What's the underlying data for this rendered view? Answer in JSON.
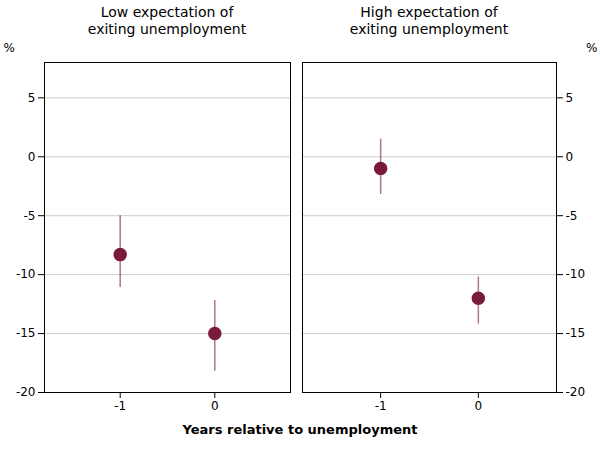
{
  "chart_data": {
    "type": "scatter",
    "xlabel": "Years relative to unemployment",
    "ylabel": "%",
    "xlim": [
      -1.8,
      0.8
    ],
    "xticks": [
      -1,
      0
    ],
    "ylim": [
      -20,
      8
    ],
    "yticks": [
      -20,
      -15,
      -10,
      -5,
      0,
      5
    ],
    "grid": true,
    "color": "#7B1B3B",
    "panels": [
      {
        "title": "Low expectation of\nexiting unemployment",
        "x": [
          -1,
          0
        ],
        "values": [
          -8.3,
          -15.0
        ],
        "yerr_low": [
          2.8,
          3.2
        ],
        "yerr_high": [
          3.3,
          2.8
        ]
      },
      {
        "title": "High expectation of\nexiting unemployment",
        "x": [
          -1,
          0
        ],
        "values": [
          -1.0,
          -12.0
        ],
        "yerr_low": [
          2.2,
          2.2
        ],
        "yerr_high": [
          2.5,
          1.8
        ]
      }
    ]
  }
}
